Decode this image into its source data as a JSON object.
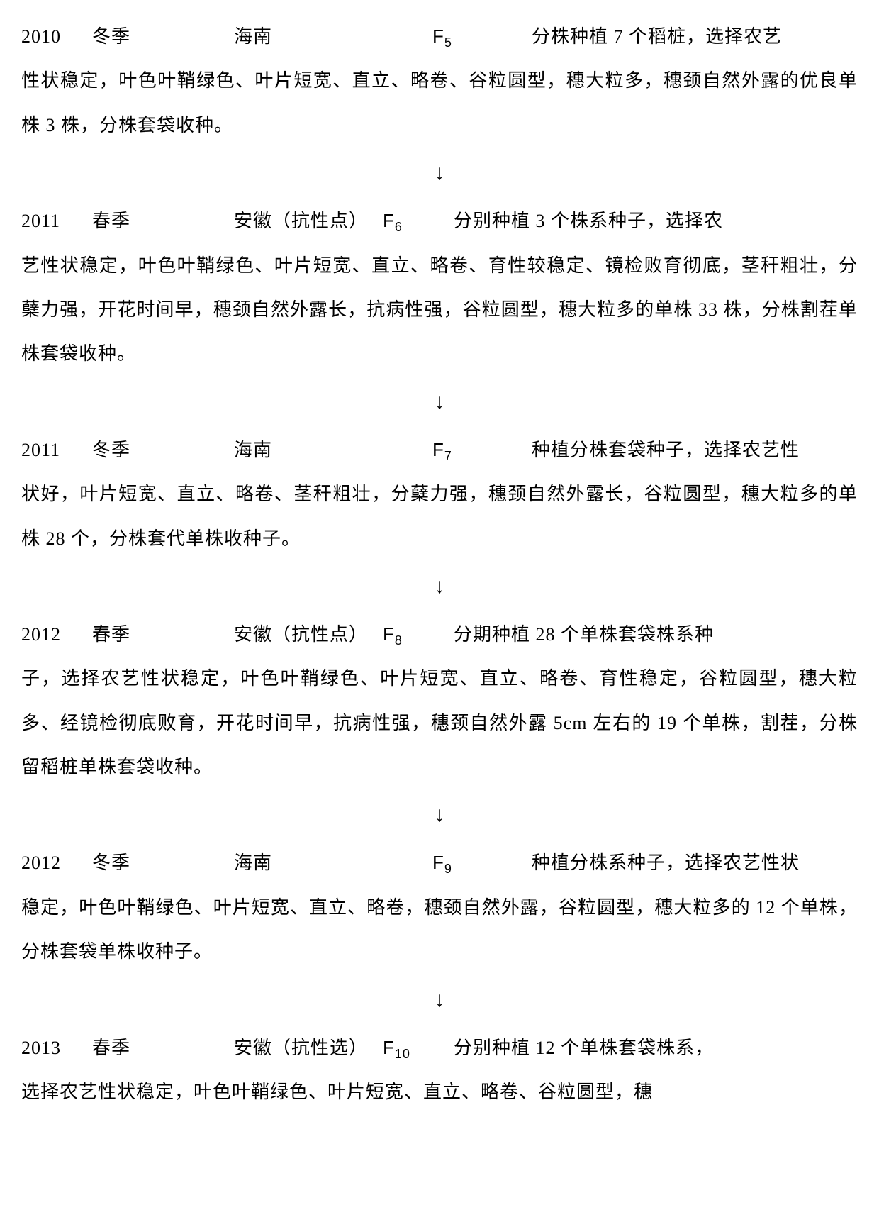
{
  "entries": [
    {
      "year": "2010",
      "season": "冬季",
      "location": "海南",
      "gen_letter": "F",
      "gen_sub": "5",
      "desc_first": "分株种植 7 个稻桩，选择农艺",
      "desc_rest": "性状稳定，叶色叶鞘绿色、叶片短宽、直立、略卷、谷粒圆型，穗大粒多，穗颈自然外露的优良单株 3 株，分株套袋收种。"
    },
    {
      "year": "2011",
      "season": "春季",
      "location": "安徽（抗性点）",
      "gen_letter": "F",
      "gen_sub": "6",
      "desc_first": "分别种植 3 个株系种子，选择农",
      "desc_rest": "艺性状稳定，叶色叶鞘绿色、叶片短宽、直立、略卷、育性较稳定、镜检败育彻底，茎秆粗壮，分蘖力强，开花时间早，穗颈自然外露长，抗病性强，谷粒圆型，穗大粒多的单株 33 株，分株割茬单株套袋收种。"
    },
    {
      "year": "2011",
      "season": "冬季",
      "location": "海南",
      "gen_letter": "F",
      "gen_sub": "7",
      "desc_first": "种植分株套袋种子，选择农艺性",
      "desc_rest": "状好，叶片短宽、直立、略卷、茎秆粗壮，分蘖力强，穗颈自然外露长，谷粒圆型，穗大粒多的单株 28 个，分株套代单株收种子。"
    },
    {
      "year": "2012",
      "season": "春季",
      "location": "安徽（抗性点）",
      "gen_letter": "F",
      "gen_sub": "8",
      "desc_first": "分期种植 28 个单株套袋株系种",
      "desc_rest": "子，选择农艺性状稳定，叶色叶鞘绿色、叶片短宽、直立、略卷、育性稳定，谷粒圆型，穗大粒多、经镜检彻底败育，开花时间早，抗病性强，穗颈自然外露 5cm 左右的 19 个单株，割茬，分株留稻桩单株套袋收种。"
    },
    {
      "year": "2012",
      "season": "冬季",
      "location": "海南",
      "gen_letter": "F",
      "gen_sub": "9",
      "desc_first": "种植分株系种子，选择农艺性状",
      "desc_rest": "稳定，叶色叶鞘绿色、叶片短宽、直立、略卷，穗颈自然外露，谷粒圆型，穗大粒多的 12 个单株，分株套袋单株收种子。"
    },
    {
      "year": "2013",
      "season": "春季",
      "location": "安徽（抗性选）",
      "gen_letter": "F",
      "gen_sub": "10",
      "desc_first": "分别种植 12 个单株套袋株系，",
      "desc_rest": "选择农艺性状稳定，叶色叶鞘绿色、叶片短宽、直立、略卷、谷粒圆型，穗"
    }
  ],
  "arrow": "↓",
  "layout": {
    "location_width_narrow": "210px"
  }
}
